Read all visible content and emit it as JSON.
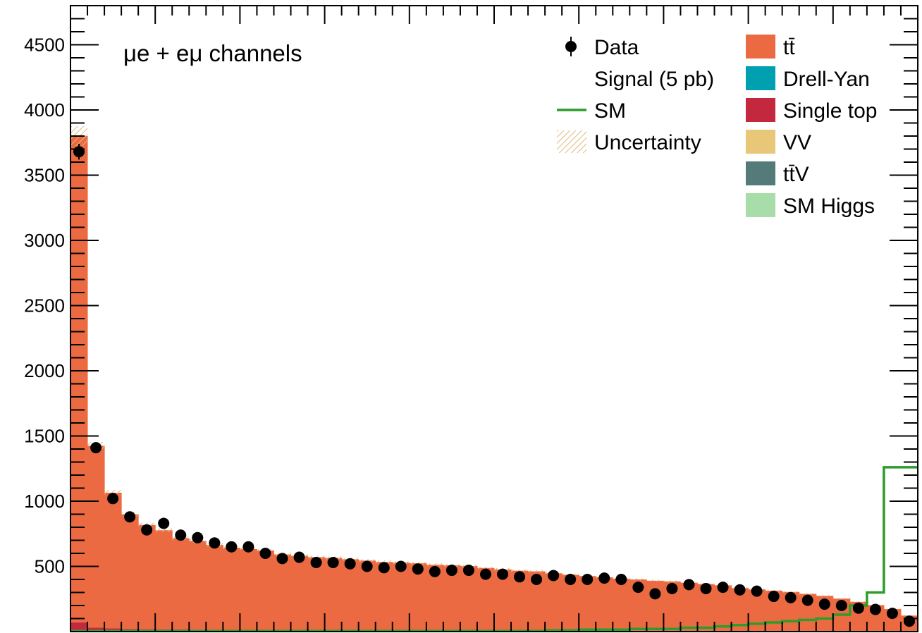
{
  "chart_data": {
    "type": "bar",
    "title": "",
    "xlabel": "",
    "ylabel": "",
    "ylim": [
      0,
      4800
    ],
    "xlim": [
      0,
      50
    ],
    "y_ticks": [
      500,
      1000,
      1500,
      2000,
      2500,
      3000,
      3500,
      4000,
      4500
    ],
    "annotation": "μe + eμ channels",
    "legend": {
      "placement": "top-right",
      "entries": [
        {
          "label": "Data",
          "marker": "data-point"
        },
        {
          "label": "Signal (5 pb)",
          "marker": "none"
        },
        {
          "label": "SM",
          "marker": "line",
          "color": "#2a9d2a"
        },
        {
          "label": "Uncertainty",
          "marker": "hatch",
          "color": "#e0b878"
        },
        {
          "label": "tt̄",
          "marker": "box",
          "color": "#ec6a42"
        },
        {
          "label": "Drell-Yan",
          "marker": "box",
          "color": "#00a0b0"
        },
        {
          "label": "Single top",
          "marker": "box",
          "color": "#c4283f"
        },
        {
          "label": "VV",
          "marker": "box",
          "color": "#e8c878"
        },
        {
          "label": "tt̄V",
          "marker": "box",
          "color": "#557a7a"
        },
        {
          "label": "SM Higgs",
          "marker": "box",
          "color": "#a8dca8"
        }
      ]
    },
    "colors": {
      "ttbar": "#ec6a42",
      "drell_yan": "#00a0b0",
      "single_top": "#c4283f",
      "vv": "#e8c878",
      "ttv": "#557a7a",
      "sm_higgs": "#a8dca8",
      "sm_line": "#2a9d2a",
      "uncertainty": "#e0b878",
      "data": "#000000"
    },
    "series": [
      {
        "name": "tt̄",
        "values": [
          3730,
          1395,
          1040,
          880,
          800,
          760,
          700,
          680,
          650,
          630,
          620,
          610,
          580,
          570,
          560,
          555,
          545,
          535,
          525,
          520,
          515,
          505,
          500,
          495,
          480,
          470,
          460,
          455,
          440,
          430,
          420,
          410,
          400,
          395,
          385,
          380,
          370,
          360,
          350,
          330,
          320,
          310,
          300,
          285,
          270,
          250,
          225,
          200,
          170,
          120
        ]
      },
      {
        "name": "Single top",
        "values": [
          70,
          30,
          25,
          20,
          18,
          17,
          16,
          15,
          14,
          13,
          13,
          12,
          12,
          11,
          11,
          10,
          10,
          10,
          9,
          9,
          9,
          8,
          8,
          8,
          8,
          7,
          7,
          7,
          7,
          6,
          6,
          6,
          6,
          5,
          5,
          5,
          5,
          5,
          5,
          4,
          4,
          4,
          4,
          4,
          4,
          3,
          3,
          3,
          3,
          3
        ]
      },
      {
        "name": "SM",
        "values": [
          5,
          5,
          5,
          5,
          5,
          5,
          5,
          5,
          5,
          5,
          5,
          5,
          5,
          5,
          5,
          5,
          5,
          5,
          5,
          5,
          5,
          5,
          5,
          5,
          5,
          5,
          5,
          5,
          10,
          10,
          15,
          15,
          15,
          20,
          20,
          20,
          30,
          30,
          40,
          50,
          60,
          70,
          80,
          90,
          100,
          130,
          200,
          300,
          1260,
          1260
        ]
      },
      {
        "name": "Data",
        "values": [
          3680,
          1410,
          1020,
          880,
          780,
          830,
          740,
          720,
          680,
          650,
          650,
          600,
          560,
          570,
          530,
          530,
          520,
          500,
          490,
          500,
          480,
          460,
          470,
          470,
          440,
          440,
          420,
          400,
          430,
          400,
          400,
          410,
          400,
          340,
          290,
          330,
          360,
          330,
          340,
          320,
          310,
          270,
          260,
          240,
          210,
          200,
          180,
          170,
          140,
          80
        ]
      }
    ]
  }
}
